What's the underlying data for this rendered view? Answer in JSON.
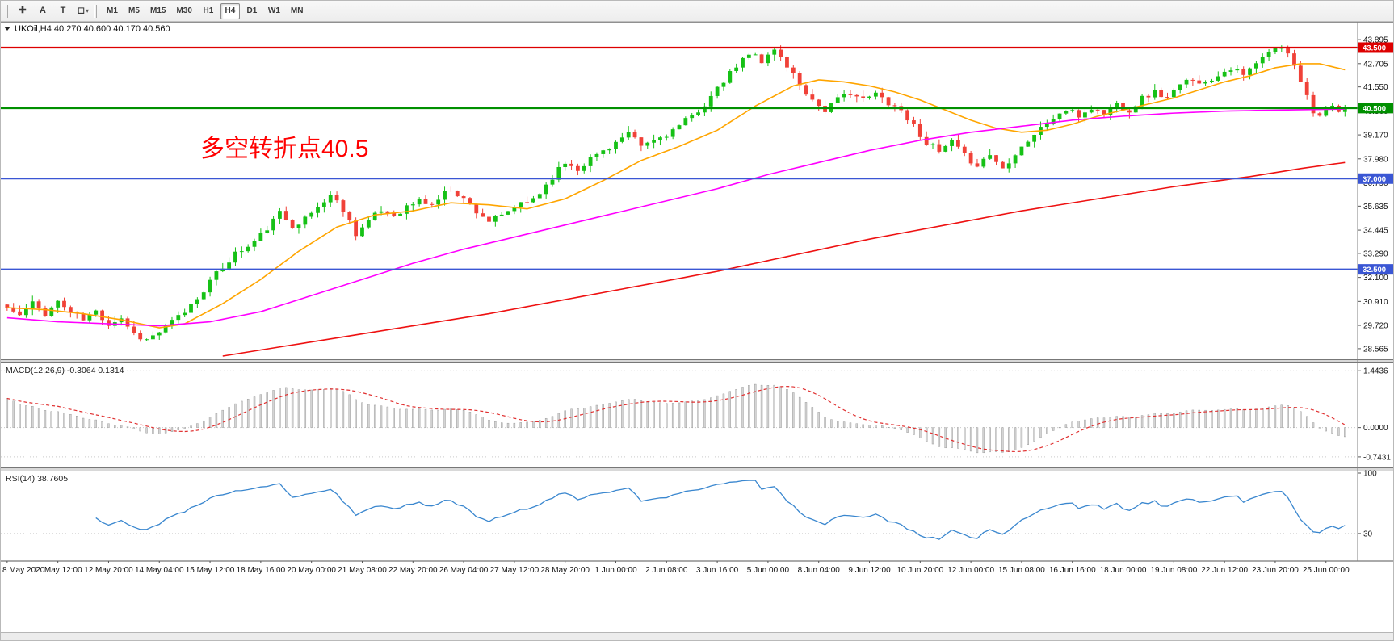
{
  "toolbar": {
    "tools": [
      {
        "name": "crosshair",
        "glyph": "✚"
      },
      {
        "name": "text-a",
        "glyph": "A"
      },
      {
        "name": "text-t",
        "glyph": "T"
      },
      {
        "name": "shapes",
        "glyph": "◻",
        "caret": "▾"
      }
    ],
    "timeframes": [
      {
        "label": "M1"
      },
      {
        "label": "M5"
      },
      {
        "label": "M15"
      },
      {
        "label": "M30"
      },
      {
        "label": "H1"
      },
      {
        "label": "H4",
        "active": true
      },
      {
        "label": "D1"
      },
      {
        "label": "W1"
      },
      {
        "label": "MN"
      }
    ]
  },
  "chart": {
    "symbol_title": "UKOil,H4",
    "ohlc_text": "40.270 40.600 40.170 40.560",
    "annotation": {
      "text": "多空转折点40.5",
      "color": "#FF0000"
    }
  },
  "chart_data": {
    "type": "candlestick",
    "symbol": "UKOil",
    "timeframe": "H4",
    "title": "UKOil,H4 40.270 40.600 40.170 40.560",
    "ohlc_current": {
      "open": 40.27,
      "high": 40.6,
      "low": 40.17,
      "close": 40.56
    },
    "candle_count": 212,
    "ylim": [
      28.04,
      44.7
    ],
    "up_color": "#16C116",
    "down_color": "#F04138",
    "price_ticks": [
      "43.895",
      "42.705",
      "41.550",
      "40.360",
      "39.170",
      "37.980",
      "36.790",
      "35.635",
      "34.445",
      "33.290",
      "32.100",
      "30.910",
      "29.720",
      "28.565"
    ],
    "hlines": [
      {
        "value": 43.5,
        "label": "43.500",
        "color": "#DD0000",
        "width": 2.2
      },
      {
        "value": 40.5,
        "label": "40.500",
        "color": "#009000",
        "width": 2.4
      },
      {
        "value": 37.0,
        "label": "37.000",
        "color": "#3A56D4",
        "width": 2
      },
      {
        "value": 32.5,
        "label": "32.500",
        "color": "#3A56D4",
        "width": 2
      }
    ],
    "close_anchors": [
      [
        0,
        30.6
      ],
      [
        2,
        30.2
      ],
      [
        4,
        30.8
      ],
      [
        6,
        30.3
      ],
      [
        8,
        30.9
      ],
      [
        10,
        30.4
      ],
      [
        12,
        30.0
      ],
      [
        14,
        30.4
      ],
      [
        16,
        29.8
      ],
      [
        18,
        30.1
      ],
      [
        20,
        29.3
      ],
      [
        22,
        29.0
      ],
      [
        24,
        29.4
      ],
      [
        26,
        29.9
      ],
      [
        28,
        30.4
      ],
      [
        30,
        31.1
      ],
      [
        32,
        31.9
      ],
      [
        34,
        32.6
      ],
      [
        36,
        33.3
      ],
      [
        38,
        33.6
      ],
      [
        40,
        34.2
      ],
      [
        42,
        34.9
      ],
      [
        43,
        35.3
      ],
      [
        45,
        34.7
      ],
      [
        47,
        35.0
      ],
      [
        49,
        35.6
      ],
      [
        51,
        36.2
      ],
      [
        53,
        35.5
      ],
      [
        55,
        34.3
      ],
      [
        57,
        34.9
      ],
      [
        59,
        35.4
      ],
      [
        61,
        35.2
      ],
      [
        63,
        35.6
      ],
      [
        65,
        35.9
      ],
      [
        67,
        35.7
      ],
      [
        69,
        36.3
      ],
      [
        70,
        36.5
      ],
      [
        72,
        36.0
      ],
      [
        74,
        35.4
      ],
      [
        76,
        34.9
      ],
      [
        78,
        35.1
      ],
      [
        80,
        35.6
      ],
      [
        82,
        35.8
      ],
      [
        84,
        36.3
      ],
      [
        86,
        37.1
      ],
      [
        88,
        37.8
      ],
      [
        90,
        37.5
      ],
      [
        92,
        38.0
      ],
      [
        94,
        38.4
      ],
      [
        96,
        38.8
      ],
      [
        98,
        39.2
      ],
      [
        100,
        38.6
      ],
      [
        102,
        38.9
      ],
      [
        104,
        39.2
      ],
      [
        106,
        39.6
      ],
      [
        108,
        40.1
      ],
      [
        110,
        40.7
      ],
      [
        112,
        41.4
      ],
      [
        114,
        42.2
      ],
      [
        116,
        42.9
      ],
      [
        118,
        43.3
      ],
      [
        119,
        42.8
      ],
      [
        121,
        43.4
      ],
      [
        123,
        42.6
      ],
      [
        125,
        41.7
      ],
      [
        127,
        40.9
      ],
      [
        129,
        40.4
      ],
      [
        131,
        40.9
      ],
      [
        133,
        41.3
      ],
      [
        135,
        40.9
      ],
      [
        137,
        41.2
      ],
      [
        139,
        40.8
      ],
      [
        141,
        40.4
      ],
      [
        143,
        39.6
      ],
      [
        145,
        38.8
      ],
      [
        147,
        38.3
      ],
      [
        149,
        38.8
      ],
      [
        151,
        38.1
      ],
      [
        153,
        37.7
      ],
      [
        155,
        38.2
      ],
      [
        157,
        37.5
      ],
      [
        159,
        38.3
      ],
      [
        161,
        38.9
      ],
      [
        163,
        39.5
      ],
      [
        165,
        40.0
      ],
      [
        167,
        40.4
      ],
      [
        169,
        40.1
      ],
      [
        171,
        40.5
      ],
      [
        173,
        40.2
      ],
      [
        175,
        40.7
      ],
      [
        177,
        40.4
      ],
      [
        179,
        41.0
      ],
      [
        181,
        41.3
      ],
      [
        183,
        41.0
      ],
      [
        185,
        41.6
      ],
      [
        187,
        42.0
      ],
      [
        189,
        41.7
      ],
      [
        191,
        42.2
      ],
      [
        193,
        42.5
      ],
      [
        195,
        42.1
      ],
      [
        197,
        42.7
      ],
      [
        199,
        43.2
      ],
      [
        200,
        43.5
      ],
      [
        202,
        43.3
      ],
      [
        203,
        42.7
      ],
      [
        204,
        41.9
      ],
      [
        205,
        41.1
      ],
      [
        206,
        40.4
      ],
      [
        207,
        40.1
      ],
      [
        208,
        40.3
      ],
      [
        209,
        40.5
      ],
      [
        210,
        40.3
      ],
      [
        211,
        40.56
      ]
    ],
    "noise": {
      "seed": 11,
      "close_amp": 0.16,
      "wick_amp": 0.3
    },
    "moving_averages": [
      {
        "name": "ma-fast",
        "color": "#FFA500",
        "width": 1.6,
        "anchors": [
          [
            0,
            30.6
          ],
          [
            6,
            30.5
          ],
          [
            12,
            30.3
          ],
          [
            18,
            30.0
          ],
          [
            24,
            29.6
          ],
          [
            28,
            29.8
          ],
          [
            34,
            30.8
          ],
          [
            40,
            32.0
          ],
          [
            46,
            33.4
          ],
          [
            52,
            34.6
          ],
          [
            58,
            35.2
          ],
          [
            64,
            35.4
          ],
          [
            70,
            35.8
          ],
          [
            76,
            35.7
          ],
          [
            82,
            35.5
          ],
          [
            88,
            36.0
          ],
          [
            94,
            36.9
          ],
          [
            100,
            37.9
          ],
          [
            106,
            38.6
          ],
          [
            112,
            39.4
          ],
          [
            118,
            40.6
          ],
          [
            124,
            41.6
          ],
          [
            128,
            41.9
          ],
          [
            132,
            41.8
          ],
          [
            136,
            41.6
          ],
          [
            140,
            41.3
          ],
          [
            144,
            40.9
          ],
          [
            148,
            40.4
          ],
          [
            152,
            39.9
          ],
          [
            156,
            39.5
          ],
          [
            160,
            39.3
          ],
          [
            164,
            39.4
          ],
          [
            168,
            39.7
          ],
          [
            172,
            40.1
          ],
          [
            176,
            40.4
          ],
          [
            180,
            40.7
          ],
          [
            184,
            41.0
          ],
          [
            188,
            41.4
          ],
          [
            192,
            41.8
          ],
          [
            196,
            42.1
          ],
          [
            200,
            42.5
          ],
          [
            204,
            42.7
          ],
          [
            207,
            42.7
          ],
          [
            211,
            42.4
          ]
        ]
      },
      {
        "name": "ma-mid",
        "color": "#FF00FF",
        "width": 1.6,
        "anchors": [
          [
            0,
            30.1
          ],
          [
            8,
            29.9
          ],
          [
            16,
            29.8
          ],
          [
            24,
            29.7
          ],
          [
            32,
            29.9
          ],
          [
            40,
            30.4
          ],
          [
            48,
            31.2
          ],
          [
            56,
            32.0
          ],
          [
            64,
            32.8
          ],
          [
            72,
            33.5
          ],
          [
            80,
            34.1
          ],
          [
            88,
            34.7
          ],
          [
            96,
            35.3
          ],
          [
            104,
            35.9
          ],
          [
            112,
            36.5
          ],
          [
            120,
            37.2
          ],
          [
            128,
            37.8
          ],
          [
            136,
            38.4
          ],
          [
            144,
            38.9
          ],
          [
            152,
            39.3
          ],
          [
            160,
            39.6
          ],
          [
            168,
            39.9
          ],
          [
            176,
            40.1
          ],
          [
            184,
            40.25
          ],
          [
            192,
            40.35
          ],
          [
            200,
            40.4
          ],
          [
            211,
            40.45
          ]
        ]
      },
      {
        "name": "ma-slow",
        "color": "#EE1111",
        "width": 1.6,
        "anchors": [
          [
            34,
            28.2
          ],
          [
            40,
            28.5
          ],
          [
            52,
            29.1
          ],
          [
            64,
            29.7
          ],
          [
            76,
            30.3
          ],
          [
            88,
            31.0
          ],
          [
            100,
            31.7
          ],
          [
            112,
            32.4
          ],
          [
            124,
            33.2
          ],
          [
            136,
            34.0
          ],
          [
            148,
            34.7
          ],
          [
            160,
            35.4
          ],
          [
            172,
            36.0
          ],
          [
            184,
            36.6
          ],
          [
            196,
            37.1
          ],
          [
            204,
            37.5
          ],
          [
            211,
            37.8
          ]
        ]
      }
    ],
    "time_labels": [
      "8 May 2020",
      "11 May 12:00",
      "12 May 20:00",
      "14 May 04:00",
      "15 May 12:00",
      "18 May 16:00",
      "20 May 00:00",
      "21 May 08:00",
      "22 May 20:00",
      "26 May 04:00",
      "27 May 12:00",
      "28 May 20:00",
      "1 Jun 00:00",
      "2 Jun 08:00",
      "3 Jun 16:00",
      "5 Jun 00:00",
      "8 Jun 04:00",
      "9 Jun 12:00",
      "10 Jun 20:00",
      "12 Jun 00:00",
      "15 Jun 08:00",
      "16 Jun 16:00",
      "18 Jun 00:00",
      "19 Jun 08:00",
      "22 Jun 12:00",
      "23 Jun 20:00",
      "25 Jun 00:00"
    ],
    "label_step": 8,
    "indicators": {
      "macd": {
        "label": "MACD(12,26,9)",
        "values_text": "-0.3064 0.1314",
        "params": [
          12,
          26,
          9
        ],
        "scale_max": 1.55,
        "scale_min": -0.95,
        "seed_offset": 1.0,
        "render_gain": 0.8,
        "ticks": [
          {
            "v": 1.4436,
            "label": "1.4436"
          },
          {
            "v": 0,
            "label": "0.0000"
          },
          {
            "v": -0.7431,
            "label": "-0.7431"
          }
        ],
        "histogram_color": "#d4d4d4",
        "histogram_border": "#8f8f8f",
        "signal_color": "#E03030"
      },
      "rsi": {
        "label": "RSI(14)",
        "value_text": "38.7605",
        "period": 14,
        "scale_max": 100,
        "scale_min": 0,
        "levels": [
          30
        ],
        "ticks": [
          {
            "v": 100,
            "label": "100"
          },
          {
            "v": 30,
            "label": "30"
          }
        ],
        "line_color": "#3A87CF"
      }
    }
  }
}
